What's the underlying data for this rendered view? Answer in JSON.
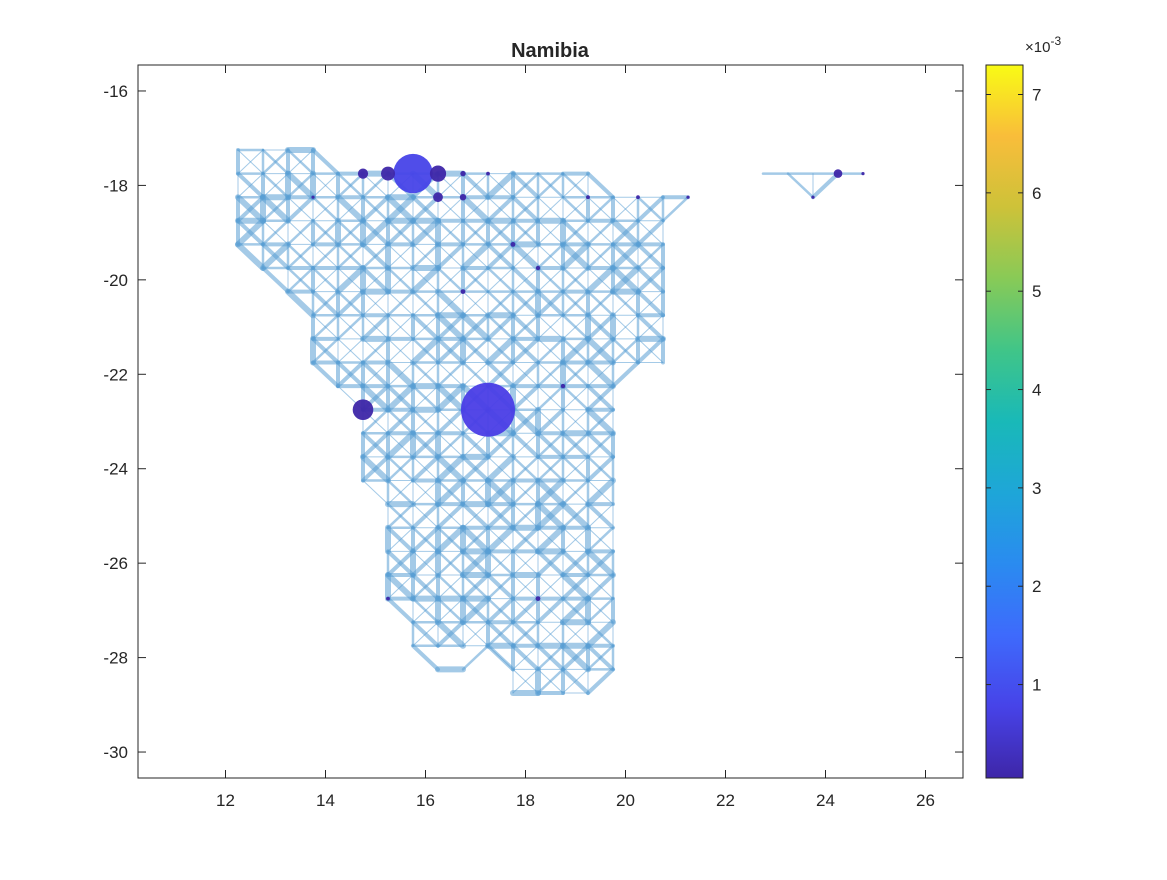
{
  "chart_data": {
    "type": "scatter",
    "title": "Namibia",
    "xlabel": "",
    "ylabel": "",
    "xlim": [
      10.25,
      26.75
    ],
    "ylim": [
      -30.55,
      -15.45
    ],
    "x_ticks": [
      12,
      14,
      16,
      18,
      20,
      22,
      24,
      26
    ],
    "y_ticks": [
      -16,
      -18,
      -20,
      -22,
      -24,
      -26,
      -28,
      -30
    ],
    "grid": false,
    "grid_step_deg": 0.5,
    "network": {
      "edge_color": "#5a9fd4",
      "rows": [
        {
          "lat": -17.25,
          "lon_min": 12.25,
          "lon_max": 13.75
        },
        {
          "lat": -17.75,
          "lon_min": 12.25,
          "lon_max": 19.25
        },
        {
          "lat": -18.25,
          "lon_min": 12.25,
          "lon_max": 21.25
        },
        {
          "lat": -18.75,
          "lon_min": 12.25,
          "lon_max": 20.75
        },
        {
          "lat": -19.25,
          "lon_min": 12.25,
          "lon_max": 20.75
        },
        {
          "lat": -19.75,
          "lon_min": 12.75,
          "lon_max": 20.75
        },
        {
          "lat": -20.25,
          "lon_min": 13.25,
          "lon_max": 20.75
        },
        {
          "lat": -20.75,
          "lon_min": 13.75,
          "lon_max": 20.75
        },
        {
          "lat": -21.25,
          "lon_min": 13.75,
          "lon_max": 20.75
        },
        {
          "lat": -21.75,
          "lon_min": 13.75,
          "lon_max": 20.75
        },
        {
          "lat": -22.25,
          "lon_min": 14.25,
          "lon_max": 19.75
        },
        {
          "lat": -22.75,
          "lon_min": 14.75,
          "lon_max": 19.75
        },
        {
          "lat": -23.25,
          "lon_min": 14.75,
          "lon_max": 19.75
        },
        {
          "lat": -23.75,
          "lon_min": 14.75,
          "lon_max": 19.75
        },
        {
          "lat": -24.25,
          "lon_min": 14.75,
          "lon_max": 19.75
        },
        {
          "lat": -24.75,
          "lon_min": 15.25,
          "lon_max": 19.75
        },
        {
          "lat": -25.25,
          "lon_min": 15.25,
          "lon_max": 19.75
        },
        {
          "lat": -25.75,
          "lon_min": 15.25,
          "lon_max": 19.75
        },
        {
          "lat": -26.25,
          "lon_min": 15.25,
          "lon_max": 19.75
        },
        {
          "lat": -26.75,
          "lon_min": 15.25,
          "lon_max": 19.75
        },
        {
          "lat": -27.25,
          "lon_min": 15.75,
          "lon_max": 19.75
        },
        {
          "lat": -27.75,
          "lon_min": 15.75,
          "lon_max": 19.75
        },
        {
          "lat": -28.25,
          "lon_min": 17.75,
          "lon_max": 19.75
        },
        {
          "lat": -28.75,
          "lon_min": 17.75,
          "lon_max": 19.25
        }
      ],
      "extra_edges": [
        [
          [
            22.75,
            -17.75
          ],
          [
            24.75,
            -17.75
          ]
        ],
        [
          [
            23.25,
            -17.75
          ],
          [
            23.75,
            -18.25
          ]
        ],
        [
          [
            23.75,
            -18.25
          ],
          [
            24.25,
            -17.75
          ]
        ],
        [
          [
            23.75,
            -17.75
          ],
          [
            23.75,
            -18.25
          ]
        ],
        [
          [
            15.75,
            -27.75
          ],
          [
            16.25,
            -28.25
          ]
        ],
        [
          [
            16.25,
            -28.25
          ],
          [
            16.75,
            -28.25
          ]
        ],
        [
          [
            16.75,
            -28.25
          ],
          [
            17.25,
            -27.75
          ]
        ],
        [
          [
            17.25,
            -27.75
          ],
          [
            17.75,
            -28.25
          ]
        ]
      ]
    },
    "points": [
      {
        "x": 15.75,
        "y": -17.75,
        "size": 7.3,
        "value": 0.0005
      },
      {
        "x": 17.25,
        "y": -22.75,
        "size": 10.0,
        "value": 0.0008
      },
      {
        "x": 14.75,
        "y": -22.75,
        "size": 3.8,
        "value": 0.0004
      },
      {
        "x": 15.25,
        "y": -17.75,
        "size": 2.6,
        "value": 0.0004
      },
      {
        "x": 16.25,
        "y": -17.75,
        "size": 3.0,
        "value": 0.0004
      },
      {
        "x": 14.75,
        "y": -17.75,
        "size": 1.9,
        "value": 0.0004
      },
      {
        "x": 16.25,
        "y": -18.25,
        "size": 1.8,
        "value": 0.0004
      },
      {
        "x": 24.25,
        "y": -17.75,
        "size": 1.6,
        "value": 0.0004
      },
      {
        "x": 16.75,
        "y": -18.25,
        "size": 1.2,
        "value": 0.0004
      },
      {
        "x": 16.75,
        "y": -17.75,
        "size": 1.0,
        "value": 0.0004
      },
      {
        "x": 17.75,
        "y": -19.25,
        "size": 0.9,
        "value": 0.0004
      },
      {
        "x": 16.75,
        "y": -20.25,
        "size": 0.9,
        "value": 0.0004
      },
      {
        "x": 18.75,
        "y": -22.25,
        "size": 0.8,
        "value": 0.0004
      },
      {
        "x": 18.25,
        "y": -26.75,
        "size": 0.9,
        "value": 0.0004
      },
      {
        "x": 18.25,
        "y": -19.75,
        "size": 0.8,
        "value": 0.0004
      },
      {
        "x": 17.25,
        "y": -17.75,
        "size": 0.7,
        "value": 0.0004
      },
      {
        "x": 19.25,
        "y": -18.25,
        "size": 0.7,
        "value": 0.0004
      },
      {
        "x": 20.25,
        "y": -18.25,
        "size": 0.7,
        "value": 0.0004
      },
      {
        "x": 15.25,
        "y": -26.75,
        "size": 0.7,
        "value": 0.0004
      },
      {
        "x": 13.75,
        "y": -18.25,
        "size": 0.6,
        "value": 0.0004
      },
      {
        "x": 24.75,
        "y": -17.75,
        "size": 0.6,
        "value": 0.0004
      },
      {
        "x": 23.75,
        "y": -18.25,
        "size": 0.6,
        "value": 0.0004
      },
      {
        "x": 21.25,
        "y": -18.25,
        "size": 0.6,
        "value": 0.0004
      }
    ],
    "colorbar": {
      "colormap": "parula",
      "min": 5e-05,
      "max": 0.0073,
      "ticks": [
        1,
        2,
        3,
        4,
        5,
        6,
        7
      ],
      "exponent_label": "×10",
      "exponent": "-3"
    }
  }
}
